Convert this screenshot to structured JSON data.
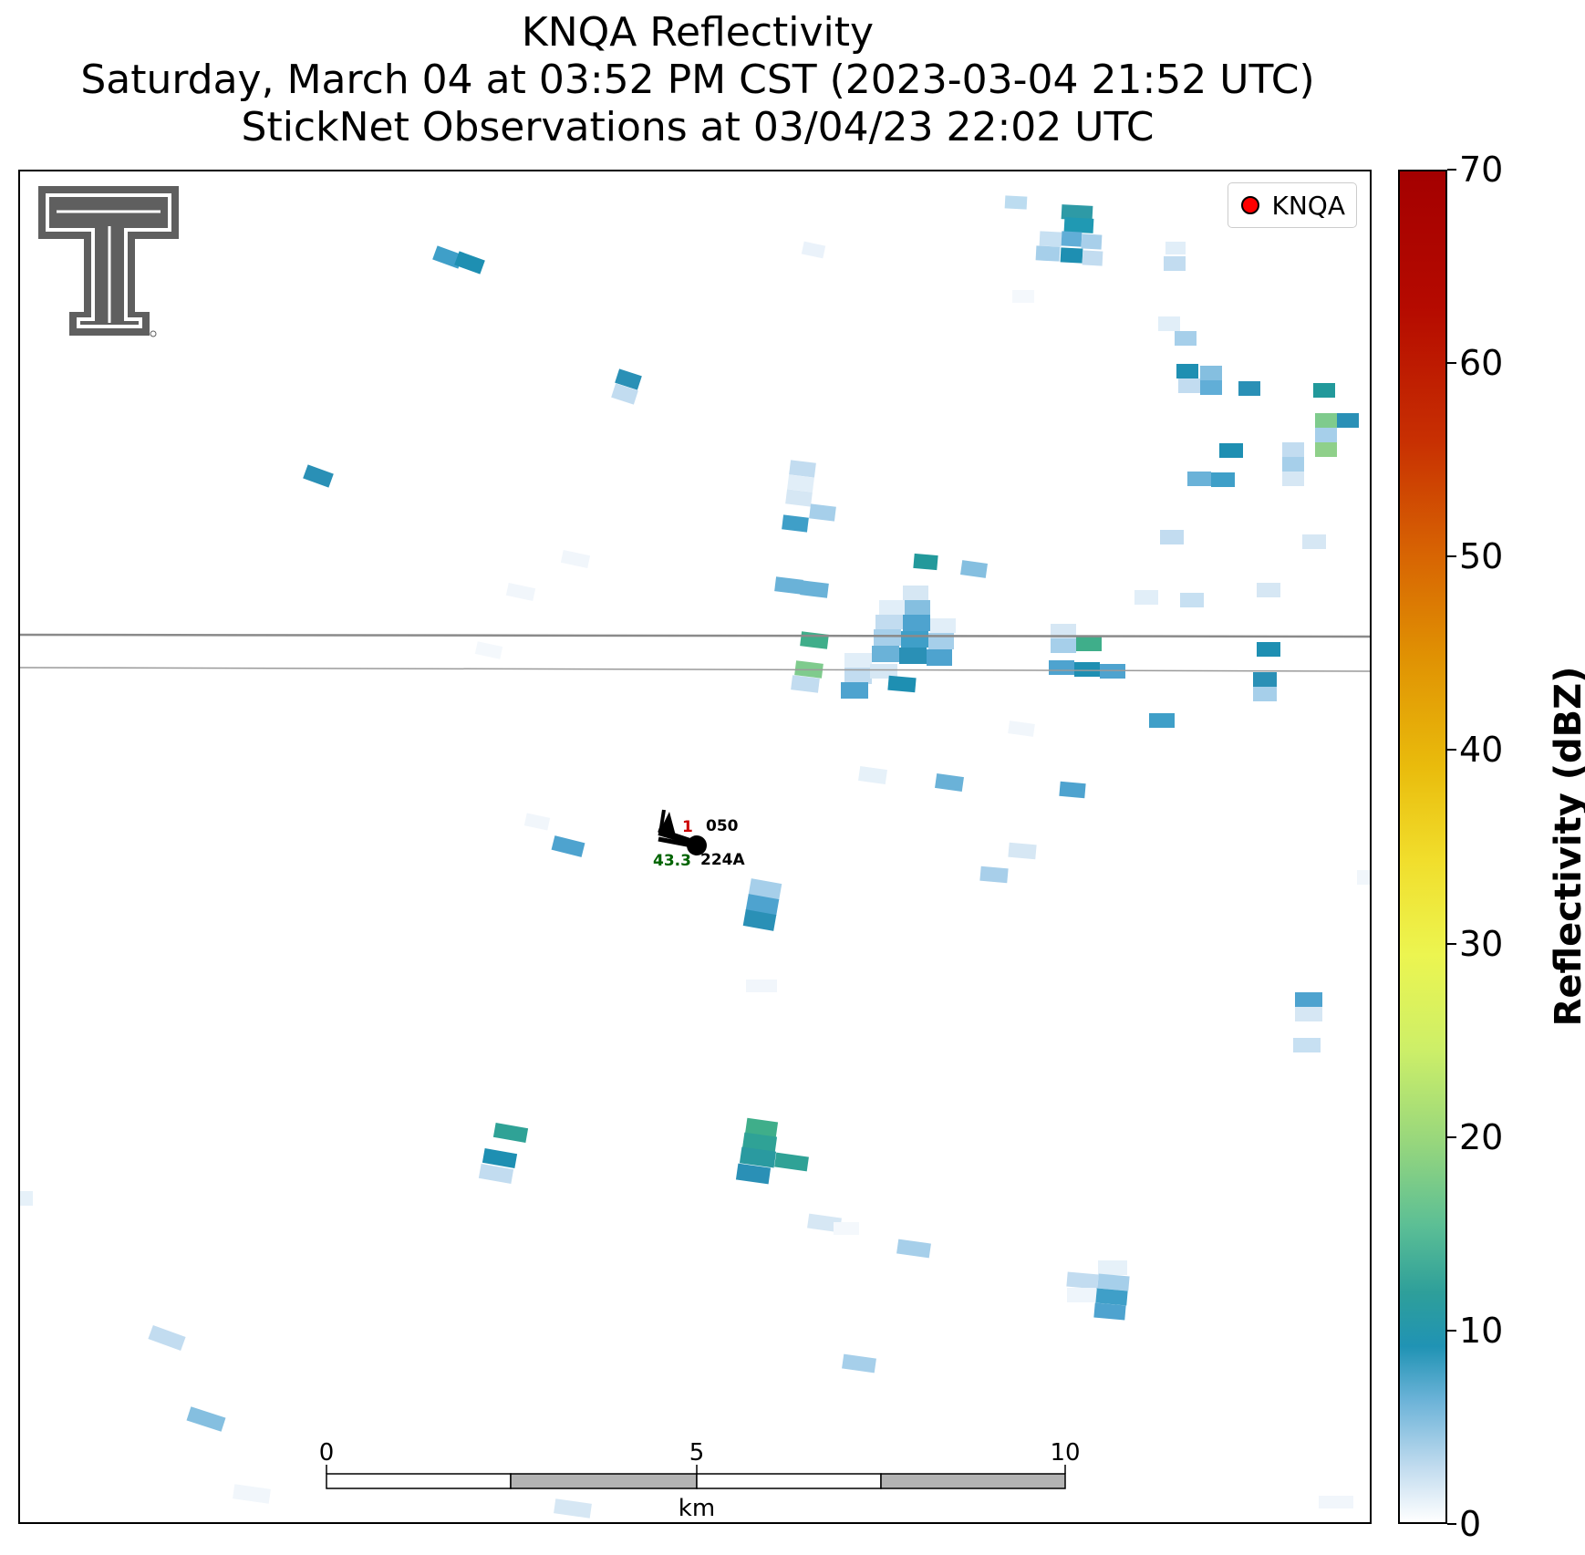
{
  "title": {
    "line1": "KNQA Reflectivity",
    "line2": "Saturday, March 04 at 03:52 PM CST (2023-03-04 21:52 UTC)",
    "line3": "StickNet Observations at 03/04/23 22:02 UTC"
  },
  "legend": {
    "label": "KNQA",
    "marker_color": "#ff0000"
  },
  "colorbar": {
    "label": "Reflectivity (dBZ)",
    "min": 0,
    "max": 70,
    "ticks": [
      0,
      10,
      20,
      30,
      40,
      50,
      60,
      70
    ]
  },
  "scalebar": {
    "unit": "km",
    "ticks": [
      "0",
      "5",
      "10"
    ],
    "max_km": 10
  },
  "station": {
    "id": "224A",
    "temperature": "1",
    "pressure": "050",
    "dewpoint_or_value": "43.3",
    "temperature_color": "#cc0000",
    "value_color": "#006400"
  },
  "logo": {
    "name": "Texas Tech Double T"
  }
}
